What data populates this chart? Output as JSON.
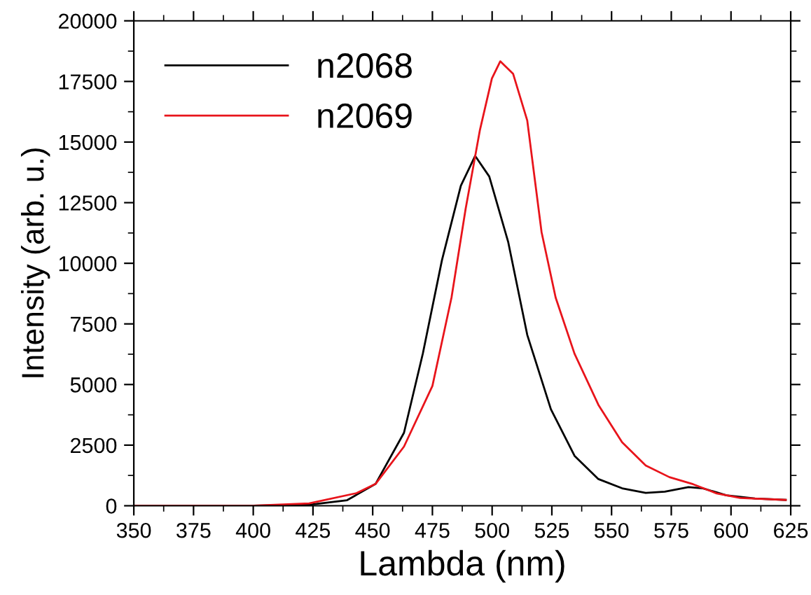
{
  "chart_data": {
    "type": "line",
    "xlabel": "Lambda (nm)",
    "ylabel": "Intensity (arb. u.)",
    "xlim": [
      350,
      625
    ],
    "xticks": [
      350,
      375,
      400,
      425,
      450,
      475,
      500,
      525,
      550,
      575,
      600,
      625
    ],
    "ylim": [
      0,
      20000
    ],
    "yticks": [
      0,
      2500,
      5000,
      7500,
      10000,
      12500,
      15000,
      17500,
      20000
    ],
    "grid": false,
    "legend": "top left",
    "marker": "none",
    "line_style": "solid",
    "series": [
      {
        "name": "n2068",
        "color": "#000000",
        "x": [
          350,
          400,
          423.4,
          439.3,
          451.2,
          463.1,
          471,
          479,
          486.9,
          492.9,
          498.8,
          506.7,
          514.7,
          524.6,
          534.5,
          544.5,
          554.4,
          564.3,
          572.3,
          582.2,
          588.2,
          598.1,
          610,
          622.9
        ],
        "values": [
          0,
          0,
          40,
          230,
          900,
          3010,
          6280,
          10130,
          13200,
          14430,
          13580,
          10890,
          7050,
          3980,
          2060,
          1100,
          720,
          530,
          580,
          770,
          720,
          430,
          300,
          240
        ]
      },
      {
        "name": "n2069",
        "color": "#e8141b",
        "x": [
          350,
          400,
          423.4,
          443.2,
          451.2,
          463.1,
          475,
          483,
          488.9,
          494.9,
          499.9,
          503.4,
          508.8,
          514.7,
          520.7,
          526.6,
          534.5,
          544.5,
          554.4,
          564.3,
          574.2,
          584.1,
          594,
          603.9,
          622.9
        ],
        "values": [
          0,
          0,
          100,
          520,
          900,
          2440,
          4940,
          8590,
          12240,
          15500,
          17620,
          18330,
          17810,
          15890,
          11280,
          8580,
          6270,
          4160,
          2620,
          1660,
          1180,
          890,
          510,
          320,
          240
        ]
      }
    ]
  }
}
